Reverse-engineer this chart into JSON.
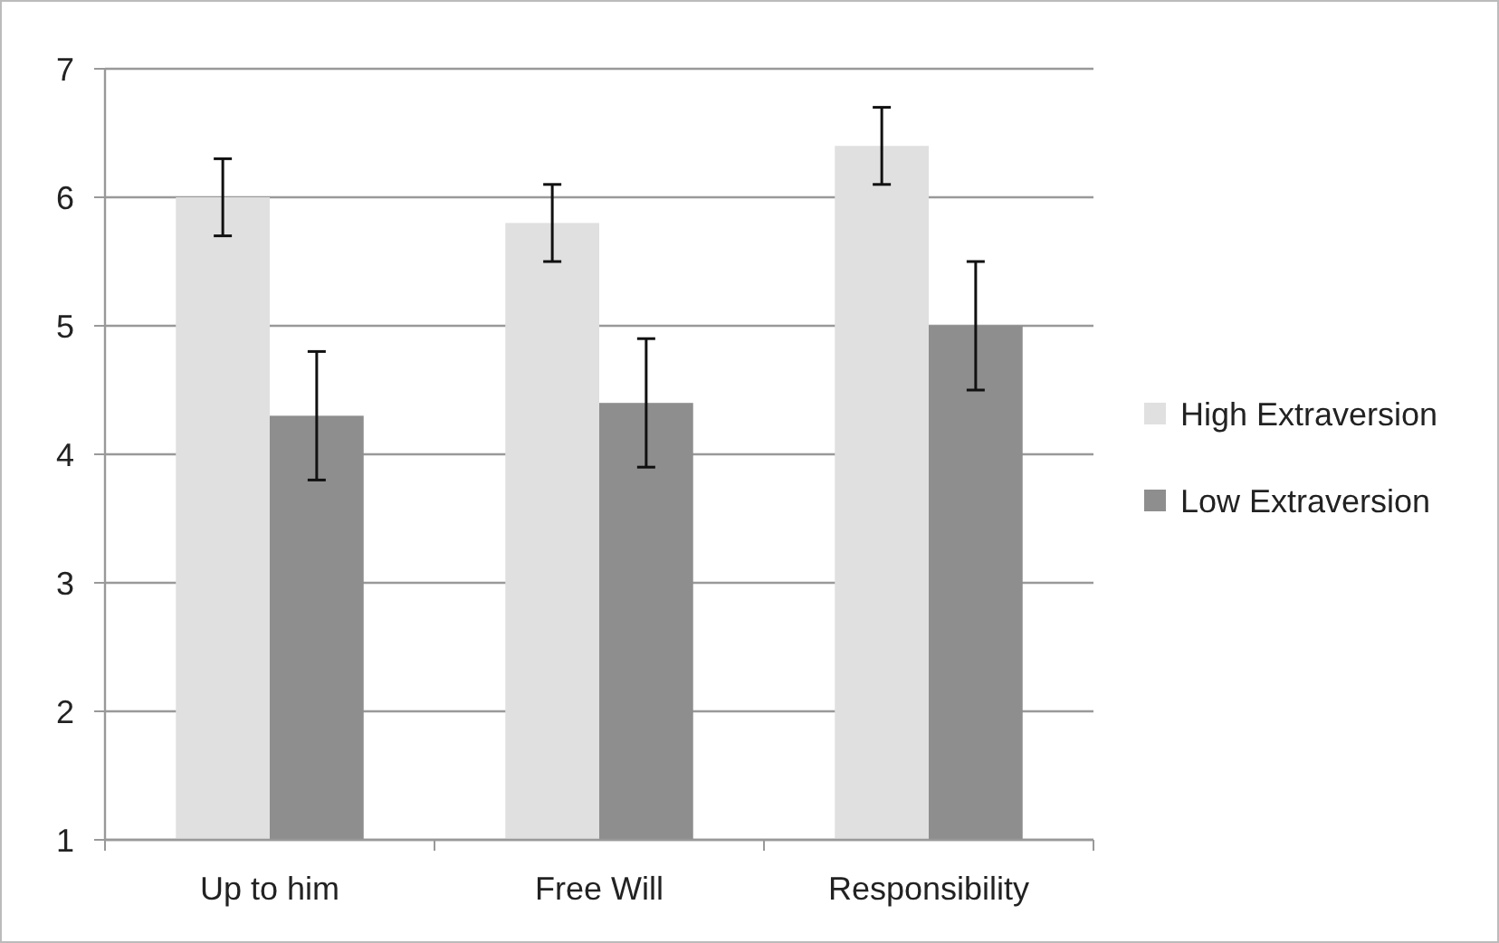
{
  "chart_data": {
    "type": "bar",
    "categories": [
      "Up to him",
      "Free Will",
      "Responsibility"
    ],
    "series": [
      {
        "name": "High Extraversion",
        "color": "#e0e0e0",
        "values": [
          6.0,
          5.8,
          6.4
        ],
        "errors": [
          0.3,
          0.3,
          0.3
        ]
      },
      {
        "name": "Low Extraversion",
        "color": "#8e8e8e",
        "values": [
          4.3,
          4.4,
          5.0
        ],
        "errors": [
          0.5,
          0.5,
          0.5
        ]
      }
    ],
    "ylim": [
      1,
      7
    ],
    "yticks": [
      1,
      2,
      3,
      4,
      5,
      6,
      7
    ],
    "grid": "y",
    "legend": "right"
  }
}
